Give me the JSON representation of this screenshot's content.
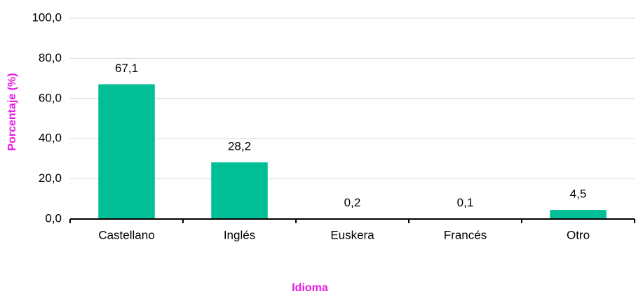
{
  "chart_data": {
    "type": "bar",
    "x_label": "Idioma",
    "y_label": "Porcentaje (%)",
    "categories": [
      "Castellano",
      "Inglés",
      "Euskera",
      "Francés",
      "Otro"
    ],
    "values": [
      67.1,
      28.2,
      0.2,
      0.1,
      4.5
    ],
    "value_labels": [
      "67,1",
      "28,2",
      "0,2",
      "0,1",
      "4,5"
    ],
    "color": "#00bf96",
    "ylim": [
      0,
      100
    ],
    "yticks": [
      {
        "value": 0,
        "label": "0,0"
      },
      {
        "value": 20,
        "label": "20,0"
      },
      {
        "value": 40,
        "label": "40,0"
      },
      {
        "value": 60,
        "label": "60,0"
      },
      {
        "value": 80,
        "label": "80,0"
      },
      {
        "value": 100,
        "label": "100,0"
      }
    ],
    "grid": true
  }
}
